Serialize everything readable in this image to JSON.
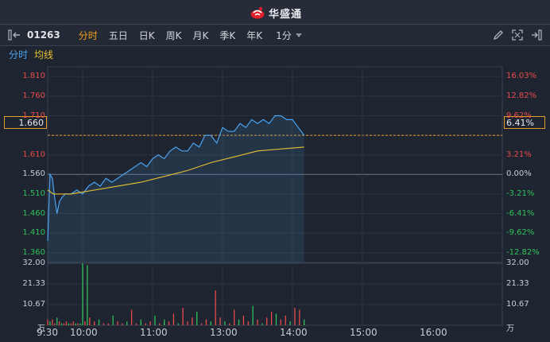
{
  "app": {
    "name": "华盛通"
  },
  "toolbar": {
    "code": "01263",
    "periods": [
      {
        "label": "分时",
        "active": true
      },
      {
        "label": "五日",
        "active": false
      },
      {
        "label": "日K",
        "active": false
      },
      {
        "label": "周K",
        "active": false
      },
      {
        "label": "月K",
        "active": false
      },
      {
        "label": "季K",
        "active": false
      },
      {
        "label": "年K",
        "active": false
      }
    ],
    "interval": "1分",
    "tools": [
      "pencil-icon",
      "expand-icon",
      "collapse-right-icon"
    ]
  },
  "legend": {
    "price_line": "分时",
    "avg_line": "均线"
  },
  "colors": {
    "up": "#e84a4a",
    "down": "#2ec05a",
    "price": "#4aa3f0",
    "avg": "#e8c030",
    "highlight": "#e89a2a"
  },
  "chart": {
    "prev_close": 1.56,
    "current_price": "1.660",
    "current_pct": "6.41%",
    "price_labels": [
      {
        "text": "1.810",
        "tone": "red"
      },
      {
        "text": "1.760",
        "tone": "red"
      },
      {
        "text": "1.710",
        "tone": "red"
      },
      {
        "text": "1.610",
        "tone": "red"
      },
      {
        "text": "1.560",
        "tone": "white"
      },
      {
        "text": "1.510",
        "tone": "green"
      },
      {
        "text": "1.460",
        "tone": "green"
      },
      {
        "text": "1.410",
        "tone": "green"
      },
      {
        "text": "1.360",
        "tone": "green"
      }
    ],
    "pct_labels": [
      {
        "text": "16.03%",
        "tone": "red"
      },
      {
        "text": "12.82%",
        "tone": "red"
      },
      {
        "text": "9.62%",
        "tone": "red"
      },
      {
        "text": "3.21%",
        "tone": "red"
      },
      {
        "text": "0.00%",
        "tone": "white"
      },
      {
        "text": "-3.21%",
        "tone": "green"
      },
      {
        "text": "-6.41%",
        "tone": "green"
      },
      {
        "text": "-9.62%",
        "tone": "green"
      },
      {
        "text": "-12.82%",
        "tone": "green"
      }
    ],
    "volume_labels": [
      "32.00",
      "21.33",
      "10.67",
      "万"
    ],
    "volume_labels_right": [
      "32.00",
      "21.33",
      "10.67",
      "万"
    ],
    "time_labels": [
      "9:30",
      "10:00",
      "11:00",
      "13:00",
      "14:00",
      "15:00",
      "16:00"
    ]
  },
  "chart_data": {
    "type": "line",
    "x_unit": "trading minutes since 9:30",
    "series": [
      {
        "name": "分时",
        "x": [
          0,
          2,
          4,
          6,
          8,
          10,
          12,
          15,
          20,
          25,
          30,
          35,
          40,
          45,
          50,
          55,
          60,
          65,
          70,
          75,
          80,
          85,
          90,
          95,
          100,
          105,
          110,
          115,
          120,
          125,
          130,
          135,
          140,
          145,
          150,
          155,
          160,
          165,
          170,
          175,
          180,
          185,
          190,
          195,
          200,
          205,
          210,
          215,
          220
        ],
        "values": [
          1.39,
          1.56,
          1.55,
          1.5,
          1.46,
          1.49,
          1.5,
          1.51,
          1.51,
          1.52,
          1.51,
          1.53,
          1.54,
          1.53,
          1.55,
          1.54,
          1.55,
          1.56,
          1.57,
          1.58,
          1.59,
          1.58,
          1.6,
          1.61,
          1.6,
          1.62,
          1.63,
          1.62,
          1.62,
          1.64,
          1.63,
          1.66,
          1.66,
          1.64,
          1.68,
          1.67,
          1.67,
          1.69,
          1.68,
          1.7,
          1.69,
          1.7,
          1.69,
          1.71,
          1.71,
          1.7,
          1.7,
          1.68,
          1.66
        ]
      },
      {
        "name": "均线",
        "x": [
          0,
          5,
          10,
          15,
          20,
          30,
          40,
          60,
          80,
          100,
          120,
          140,
          160,
          180,
          200,
          220
        ],
        "values": [
          1.52,
          1.51,
          1.51,
          1.51,
          1.51,
          1.515,
          1.52,
          1.53,
          1.54,
          1.555,
          1.57,
          1.59,
          1.605,
          1.62,
          1.625,
          1.63
        ]
      }
    ],
    "volume": {
      "x": [
        0,
        2,
        4,
        6,
        8,
        10,
        12,
        14,
        16,
        18,
        20,
        22,
        24,
        26,
        28,
        30,
        32,
        34,
        36,
        40,
        44,
        48,
        52,
        56,
        60,
        64,
        68,
        72,
        76,
        80,
        84,
        88,
        92,
        96,
        100,
        104,
        108,
        112,
        116,
        120,
        124,
        128,
        132,
        136,
        140,
        144,
        148,
        152,
        156,
        160,
        164,
        168,
        172,
        176,
        180,
        184,
        188,
        192,
        196,
        200,
        204,
        208,
        212,
        216,
        220
      ],
      "values": [
        3,
        2,
        3,
        1,
        4,
        2,
        1,
        1,
        2,
        1,
        1,
        2,
        1,
        1,
        1,
        32,
        2,
        31,
        4,
        2,
        3,
        1,
        1,
        5,
        2,
        1,
        2,
        8,
        1,
        3,
        1,
        2,
        5,
        1,
        3,
        2,
        6,
        1,
        9,
        2,
        4,
        7,
        1,
        3,
        2,
        18,
        4,
        2,
        1,
        8,
        3,
        5,
        2,
        10,
        3,
        1,
        4,
        7,
        6,
        3,
        5,
        2,
        9,
        8,
        3
      ],
      "up": [
        true,
        false,
        true,
        true,
        false,
        true,
        false,
        true,
        true,
        false,
        true,
        true,
        false,
        true,
        false,
        false,
        true,
        false,
        true,
        true,
        false,
        true,
        true,
        false,
        true,
        true,
        false,
        true,
        true,
        false,
        true,
        true,
        false,
        true,
        false,
        true,
        true,
        false,
        true,
        true,
        true,
        false,
        true,
        true,
        false,
        true,
        true,
        false,
        true,
        true,
        false,
        true,
        true,
        false,
        true,
        false,
        true,
        true,
        false,
        true,
        true,
        false,
        true,
        true,
        false
      ],
      "ylim": [
        0,
        32
      ]
    },
    "ylim": [
      1.335,
      1.835
    ],
    "xlim": [
      0,
      390
    ]
  }
}
